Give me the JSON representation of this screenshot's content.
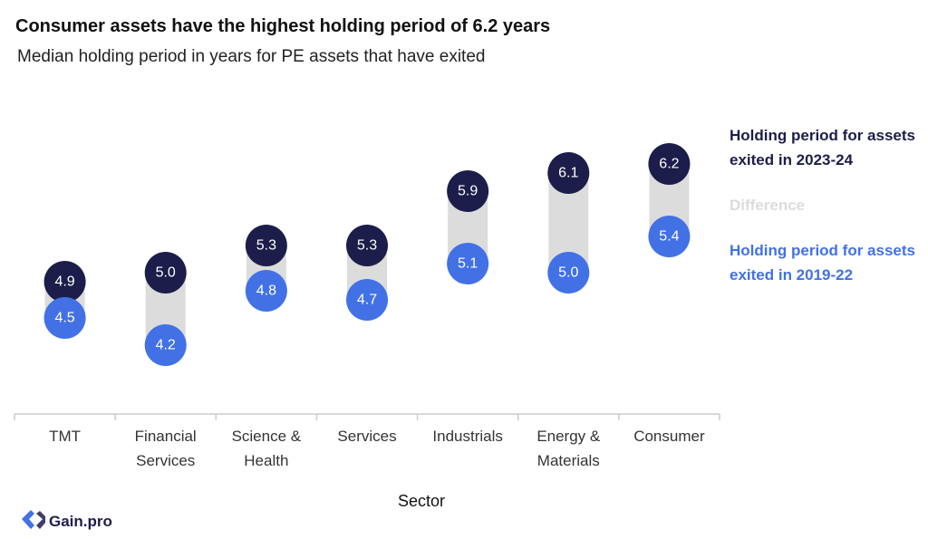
{
  "chart_data": {
    "type": "dumbbell",
    "title": "Consumer assets have the highest holding period of 6.2 years",
    "subtitle": "Median holding period in years for PE assets that have exited",
    "x_label": "Sector",
    "categories": [
      "TMT",
      "Financial Services",
      "Science & Health",
      "Services",
      "Industrials",
      "Energy & Materials",
      "Consumer"
    ],
    "series": [
      {
        "name": "Holding period for assets exited in 2023-24",
        "color": "#1d1d4b",
        "values": [
          4.9,
          5.0,
          5.3,
          5.3,
          5.9,
          6.1,
          6.2
        ],
        "value_labels": [
          "4.9",
          "5.0",
          "5.3",
          "5.3",
          "5.9",
          "6.1",
          "6.2"
        ]
      },
      {
        "name": "Holding period for assets exited in 2019-22",
        "color": "#4271e6",
        "values": [
          4.5,
          4.2,
          4.8,
          4.7,
          5.1,
          5.0,
          5.4
        ],
        "value_labels": [
          "4.5",
          "4.2",
          "4.8",
          "4.7",
          "5.1",
          "5.0",
          "5.4"
        ]
      }
    ],
    "difference": {
      "name": "Difference",
      "color": "#dcdcdc"
    }
  },
  "brand": "Gain.pro"
}
